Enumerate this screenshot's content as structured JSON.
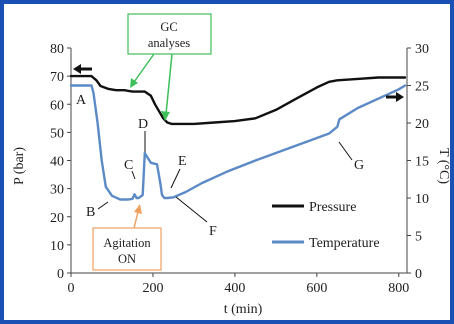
{
  "chart_data": {
    "type": "line",
    "xlabel": "t (min)",
    "ylabel_left": "P (bar)",
    "ylabel_right": "T (°C)",
    "xlim": [
      0,
      820
    ],
    "ylim_left": [
      0,
      80
    ],
    "ylim_right": [
      0,
      30
    ],
    "x_ticks": [
      "0",
      "200",
      "400",
      "600",
      "800"
    ],
    "y_ticks_left": [
      "0",
      "10",
      "20",
      "30",
      "40",
      "50",
      "60",
      "70",
      "80"
    ],
    "y_ticks_right": [
      "0",
      "5",
      "10",
      "15",
      "20",
      "25",
      "30"
    ],
    "grid": false,
    "legend_position": "right",
    "series": [
      {
        "name": "Pressure",
        "axis": "left",
        "color": "#111111",
        "x": [
          0,
          50,
          62,
          72,
          90,
          110,
          130,
          150,
          165,
          180,
          195,
          205,
          215,
          225,
          235,
          245,
          260,
          300,
          350,
          400,
          450,
          500,
          550,
          600,
          630,
          650,
          700,
          750,
          800,
          815
        ],
        "y": [
          70,
          70,
          68.5,
          66.5,
          65.5,
          65,
          65,
          64.5,
          64.5,
          64.5,
          63,
          60,
          57.5,
          55,
          53.5,
          53,
          53,
          53,
          53.5,
          54,
          55,
          58,
          62,
          66,
          68,
          68.5,
          69,
          69.5,
          69.5,
          69.5
        ]
      },
      {
        "name": "Temperature",
        "axis": "right",
        "color": "#5b8ac6",
        "x": [
          0,
          50,
          55,
          65,
          75,
          85,
          100,
          120,
          140,
          150,
          155,
          160,
          165,
          170,
          175,
          180,
          182,
          195,
          210,
          218,
          222,
          228,
          235,
          250,
          280,
          320,
          380,
          450,
          520,
          580,
          630,
          650,
          655,
          700,
          760,
          800,
          815
        ],
        "y": [
          25,
          25,
          24,
          20,
          15,
          11.5,
          10.3,
          9.8,
          9.8,
          9.9,
          10.5,
          10,
          10,
          10.2,
          10.4,
          16,
          15.8,
          14.7,
          14.5,
          12,
          10.4,
          10,
          10,
          10.1,
          10.8,
          12,
          13.5,
          15,
          16.4,
          17.6,
          18.6,
          19.5,
          20.5,
          22,
          23.5,
          24.5,
          25
        ]
      }
    ],
    "point_labels": [
      "A",
      "B",
      "C",
      "D",
      "E",
      "F",
      "G"
    ],
    "annotations": {
      "gc_line1": "GC",
      "gc_line2": "analyses",
      "agitation_line1": "Agitation",
      "agitation_line2": "ON"
    }
  }
}
